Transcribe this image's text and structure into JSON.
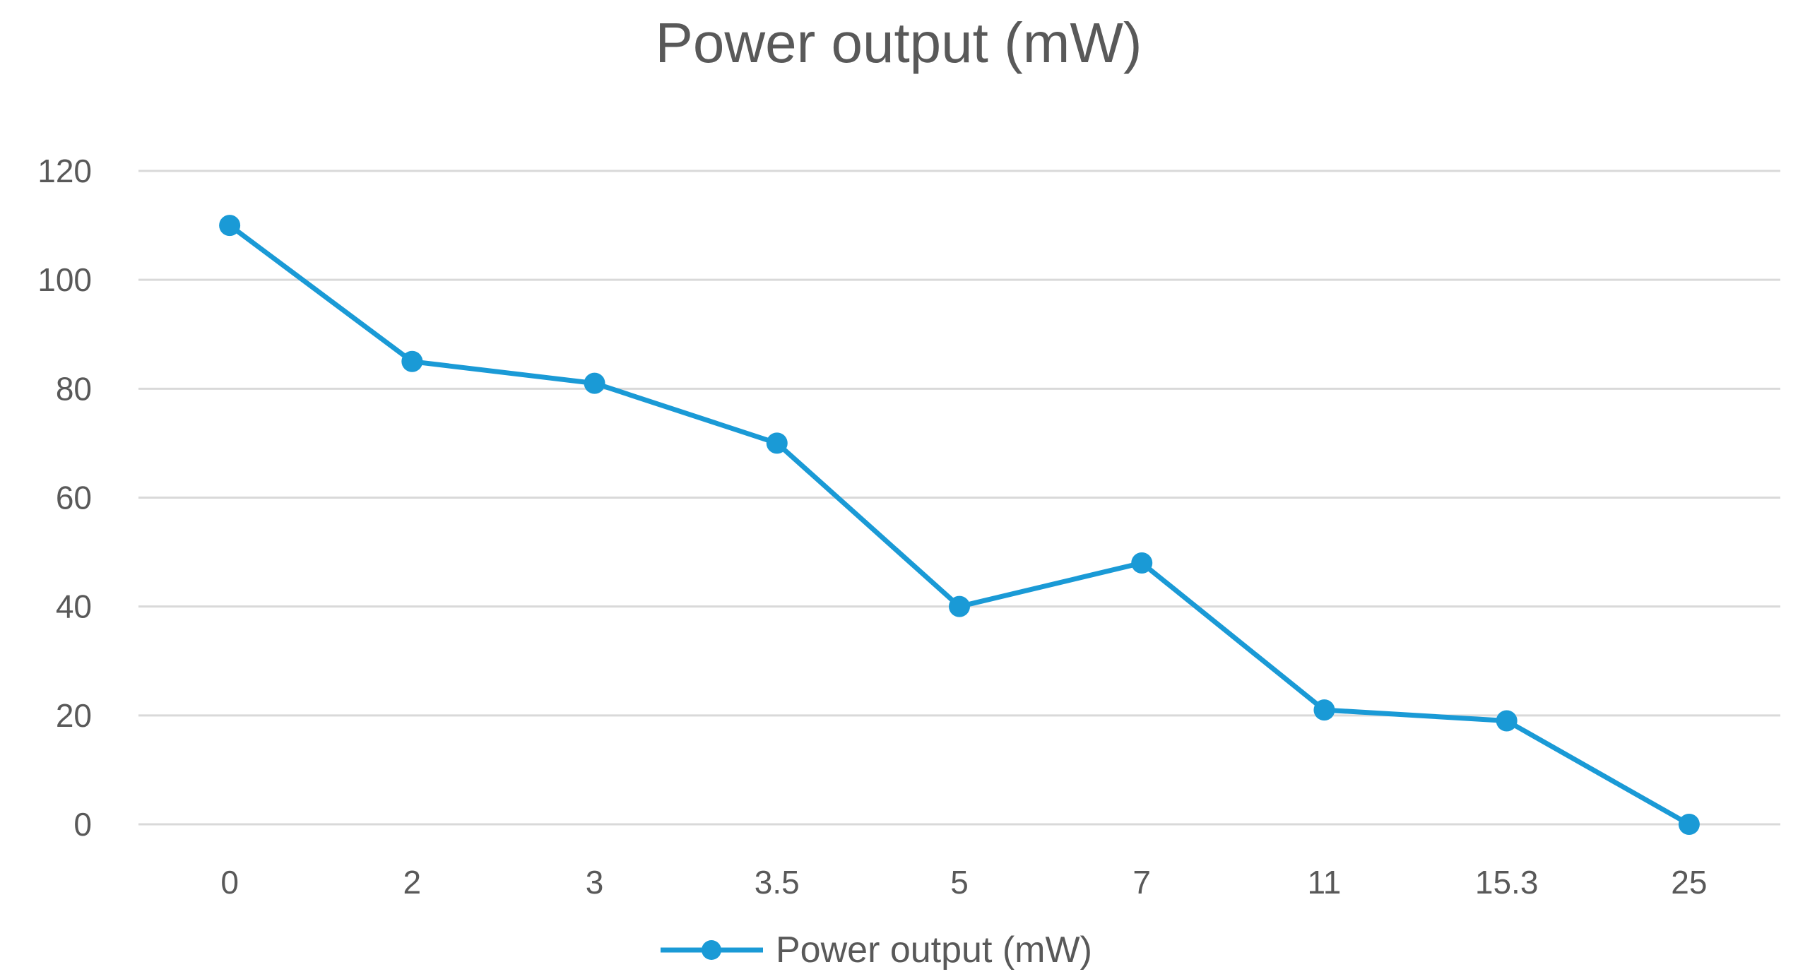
{
  "chart_data": {
    "type": "line",
    "title": "Power output (mW)",
    "xlabel": "",
    "ylabel": "",
    "categories": [
      "0",
      "2",
      "3",
      "3.5",
      "5",
      "7",
      "11",
      "15.3",
      "25"
    ],
    "series": [
      {
        "name": "Power output (mW)",
        "values": [
          110,
          85,
          81,
          70,
          40,
          48,
          21,
          19,
          0
        ],
        "color": "#1a9ad6"
      }
    ],
    "ylim": [
      0,
      120
    ],
    "yticks": [
      0,
      20,
      40,
      60,
      80,
      100,
      120
    ],
    "grid": true,
    "gridColor": "#d9d9d9",
    "legend": "bottom",
    "markers": true
  }
}
